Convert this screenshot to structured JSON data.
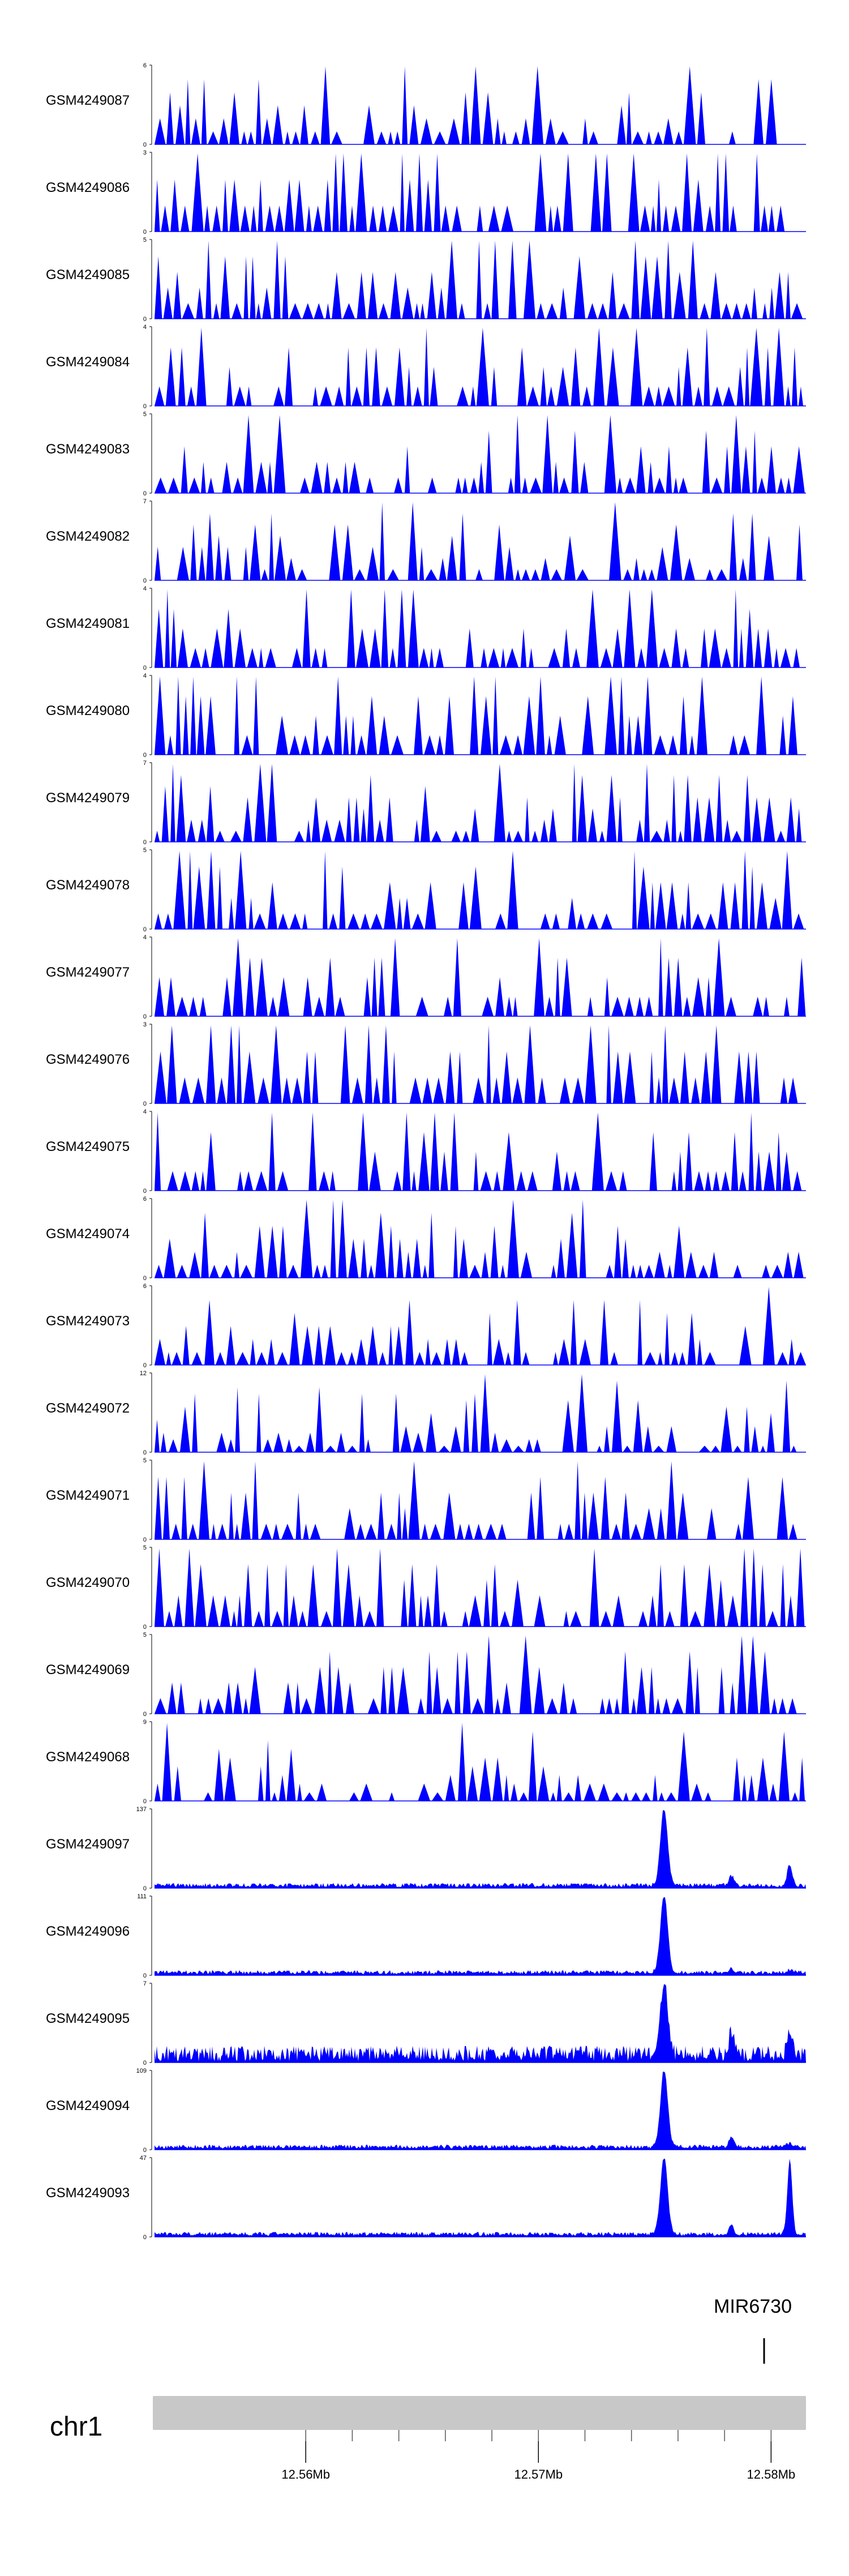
{
  "chart_data": {
    "type": "area",
    "tracks": [
      {
        "name": "GSM4249087",
        "ymax": "6",
        "ymin": "0",
        "max": 6
      },
      {
        "name": "GSM4249086",
        "ymax": "3",
        "ymin": "0",
        "max": 3
      },
      {
        "name": "GSM4249085",
        "ymax": "5",
        "ymin": "0",
        "max": 5
      },
      {
        "name": "GSM4249084",
        "ymax": "4",
        "ymin": "0",
        "max": 4
      },
      {
        "name": "GSM4249083",
        "ymax": "5",
        "ymin": "0",
        "max": 5
      },
      {
        "name": "GSM4249082",
        "ymax": "7",
        "ymin": "0",
        "max": 7
      },
      {
        "name": "GSM4249081",
        "ymax": "4",
        "ymin": "0",
        "max": 4
      },
      {
        "name": "GSM4249080",
        "ymax": "4",
        "ymin": "0",
        "max": 4
      },
      {
        "name": "GSM4249079",
        "ymax": "7",
        "ymin": "0",
        "max": 7
      },
      {
        "name": "GSM4249078",
        "ymax": "5",
        "ymin": "0",
        "max": 5
      },
      {
        "name": "GSM4249077",
        "ymax": "4",
        "ymin": "0",
        "max": 4
      },
      {
        "name": "GSM4249076",
        "ymax": "3",
        "ymin": "0",
        "max": 3
      },
      {
        "name": "GSM4249075",
        "ymax": "4",
        "ymin": "0",
        "max": 4
      },
      {
        "name": "GSM4249074",
        "ymax": "6",
        "ymin": "0",
        "max": 6
      },
      {
        "name": "GSM4249073",
        "ymax": "6",
        "ymin": "0",
        "max": 6
      },
      {
        "name": "GSM4249072",
        "ymax": "12",
        "ymin": "0",
        "max": 12
      },
      {
        "name": "GSM4249071",
        "ymax": "5",
        "ymin": "0",
        "max": 5
      },
      {
        "name": "GSM4249070",
        "ymax": "5",
        "ymin": "0",
        "max": 5
      },
      {
        "name": "GSM4249069",
        "ymax": "5",
        "ymin": "0",
        "max": 5
      },
      {
        "name": "GSM4249068",
        "ymax": "9",
        "ymin": "0",
        "max": 9
      },
      {
        "name": "GSM4249097",
        "ymax": "137",
        "ymin": "0",
        "max": 137
      },
      {
        "name": "GSM4249096",
        "ymax": "111",
        "ymin": "0",
        "max": 111
      },
      {
        "name": "GSM4249095",
        "ymax": "7",
        "ymin": "0",
        "max": 7
      },
      {
        "name": "GSM4249094",
        "ymax": "109",
        "ymin": "0",
        "max": 109
      },
      {
        "name": "GSM4249093",
        "ymax": "47",
        "ymin": "0",
        "max": 47
      }
    ],
    "xlim": [
      12.5535,
      12.5815
    ],
    "x_ticks": [
      {
        "pos": 12.56,
        "label": "12.56Mb"
      },
      {
        "pos": 12.57,
        "label": "12.57Mb"
      },
      {
        "pos": 12.58,
        "label": "12.58Mb"
      }
    ],
    "minor_ticks": [
      12.56,
      12.562,
      12.564,
      12.566,
      12.568,
      12.57,
      12.572,
      12.574,
      12.576,
      12.578,
      12.58
    ],
    "gene": {
      "name": "MIR6730",
      "pos": 12.5797
    },
    "chromosome": "chr1",
    "peak_positions": [
      12.5754,
      12.5783,
      12.5808
    ],
    "color": "#0000ff",
    "ideogram_color": "#c8c8c8"
  }
}
